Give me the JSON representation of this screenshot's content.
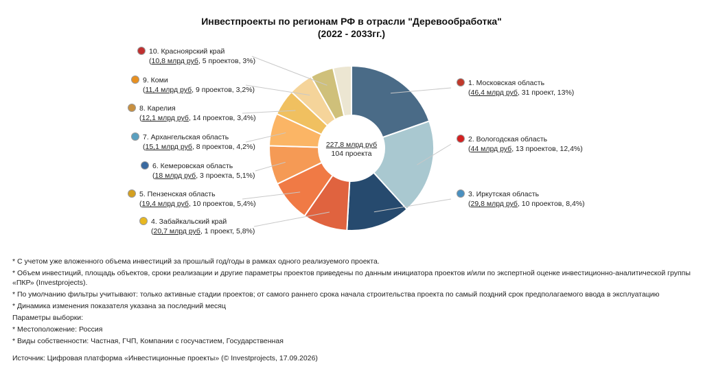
{
  "title_line1": "Инвестпроекты по регионам РФ в отрасли \"Деревообработка\"",
  "title_line2": "(2022 - 2033гг.)",
  "center": {
    "value": "227,8 млрд руб",
    "count": "104 проекта"
  },
  "chart_data": {
    "type": "pie",
    "donut": true,
    "title": "Инвестпроекты по регионам РФ в отрасли \"Деревообработка\" (2022 - 2033гг.)",
    "slices": [
      {
        "name": "1. Московская область",
        "value": 46.4,
        "value_text": "46,4 млрд руб",
        "rest": ", 31 проект, 13%)",
        "color": "#4a6b87",
        "icon_color": "#c0392b"
      },
      {
        "name": "2. Вологодская область",
        "value": 44,
        "value_text": "44 млрд руб",
        "rest": ", 13 проектов, 12,4%)",
        "color": "#a9c8d0",
        "icon_color": "#d42020"
      },
      {
        "name": "3. Иркутская область",
        "value": 29.8,
        "value_text": "29,8 млрд руб",
        "rest": ", 10 проектов, 8,4%)",
        "color": "#264a6e",
        "icon_color": "#4a90c0"
      },
      {
        "name": "4. Забайкальский край",
        "value": 20.7,
        "value_text": "20,7 млрд руб",
        "rest": ", 1 проект, 5,8%)",
        "color": "#e0633f",
        "icon_color": "#e8b820"
      },
      {
        "name": "5. Пензенская область",
        "value": 19.4,
        "value_text": "19,4 млрд руб",
        "rest": ", 10 проектов, 5,4%)",
        "color": "#f07a45",
        "icon_color": "#d4a020"
      },
      {
        "name": "6. Кемеровская область",
        "value": 18,
        "value_text": "18 млрд руб",
        "rest": ", 3 проекта, 5,1%)",
        "color": "#f59a55",
        "icon_color": "#3a6aa0"
      },
      {
        "name": "7. Архангельская область",
        "value": 15.1,
        "value_text": "15,1 млрд руб",
        "rest": ", 8 проектов, 4,2%)",
        "color": "#fbb565",
        "icon_color": "#5aa0c0"
      },
      {
        "name": "8. Карелия",
        "value": 12.1,
        "value_text": "12,1 млрд руб",
        "rest": ", 14 проектов, 3,4%)",
        "color": "#f0c060",
        "icon_color": "#c89040"
      },
      {
        "name": "9. Коми",
        "value": 11.4,
        "value_text": "11,4 млрд руб",
        "rest": ", 9 проектов, 3,2%)",
        "color": "#f5d49a",
        "icon_color": "#e89020"
      },
      {
        "name": "10. Красноярский край",
        "value": 10.8,
        "value_text": "10,8 млрд руб",
        "rest": ", 5 проектов, 3%)",
        "color": "#cfc07a",
        "icon_color": "#c03030"
      },
      {
        "name": "",
        "value": 8.5,
        "value_text": "",
        "rest": "",
        "color": "#ece6d2",
        "icon_color": ""
      }
    ]
  },
  "notes": [
    "* С учетом уже вложенного объема инвестиций за прошлый год/годы в рамках одного реализуемого проекта.",
    "* Объем инвестиций, площадь объектов, сроки реализации и другие параметры проектов приведены по данным инициатора проектов и/или по экспертной оценке инвестиционно-аналитической группы «ПКР» (Investprojects).",
    "* По умолчанию фильтры учитывают: только активные стадии проектов; от самого раннего срока начала строительства проекта по самый поздний срок предполагаемого ввода в эксплуатацию",
    "* Динамика изменения показателя указана за последний месяц",
    "Параметры выборки:",
    "* Местоположение: Россия",
    "* Виды собственности: Частная, ГЧП, Компании с госучастием, Государственная"
  ],
  "source": "Источник: Цифровая платформа «Инвестиционные проекты» (© Investprojects, 17.09.2026)"
}
